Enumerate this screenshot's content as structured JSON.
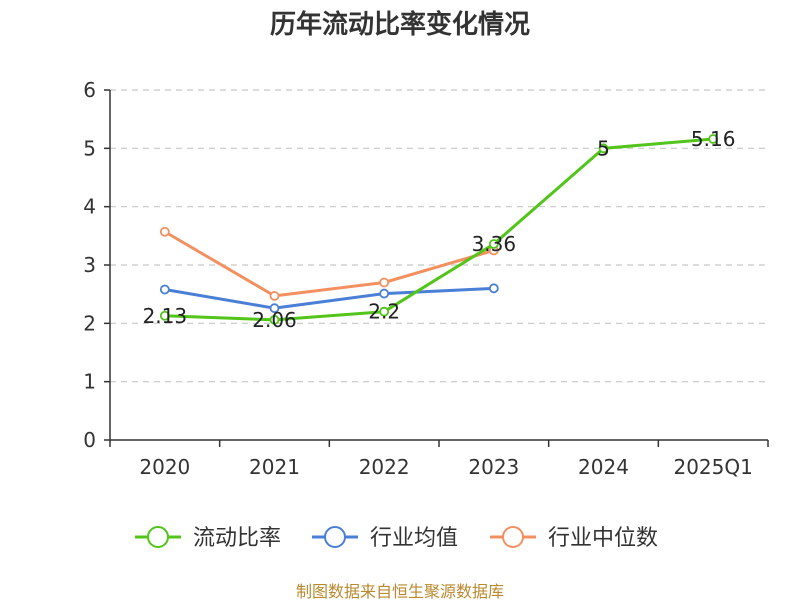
{
  "chart_data": {
    "type": "line",
    "title": "历年流动比率变化情况",
    "categories": [
      "2020",
      "2021",
      "2022",
      "2023",
      "2024",
      "2025Q1"
    ],
    "ylim": [
      0,
      6
    ],
    "yticks": [
      "0",
      "1",
      "2",
      "3",
      "4",
      "5",
      "6"
    ],
    "grid": true,
    "legend_position": "bottom",
    "series": [
      {
        "name": "流动比率",
        "color": "#52c41a",
        "values": [
          2.13,
          2.06,
          2.2,
          3.36,
          5,
          5.16
        ],
        "labels": [
          "2.13",
          "2.06",
          "2.2",
          "3.36",
          "5",
          "5.16"
        ]
      },
      {
        "name": "行业均值",
        "color": "#4a7fd8",
        "values": [
          2.58,
          2.26,
          2.51,
          2.6,
          null,
          null
        ]
      },
      {
        "name": "行业中位数",
        "color": "#f39060",
        "values": [
          3.57,
          2.47,
          2.7,
          3.25,
          null,
          null
        ]
      }
    ]
  },
  "source": "制图数据来自恒生聚源数据库"
}
